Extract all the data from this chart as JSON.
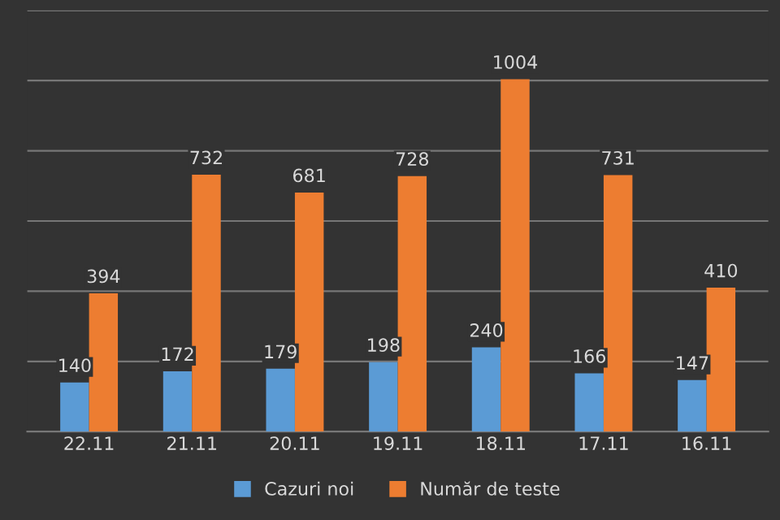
{
  "chart_data": {
    "type": "bar",
    "categories": [
      "22.11",
      "21.11",
      "20.11",
      "19.11",
      "18.11",
      "17.11",
      "16.11"
    ],
    "series": [
      {
        "name": "Cazuri noi",
        "color": "#5b9bd5",
        "values": [
          140,
          172,
          179,
          198,
          240,
          166,
          147
        ]
      },
      {
        "name": "Număr de teste",
        "color": "#ed7d31",
        "values": [
          394,
          732,
          681,
          728,
          1004,
          731,
          410
        ]
      }
    ],
    "ylim": [
      0,
      1200
    ],
    "yticks": [
      {
        "value": 0,
        "label": null
      },
      {
        "value": 200,
        "label": null
      },
      {
        "value": 400,
        "label": null
      },
      {
        "value": 600,
        "label": null
      },
      {
        "value": 800,
        "label": null
      },
      {
        "value": 1000,
        "label": null
      },
      {
        "value": 1200,
        "label": null
      }
    ],
    "tick_labels": "x",
    "grid": "y",
    "legend": "bottom",
    "data_labels": true
  }
}
